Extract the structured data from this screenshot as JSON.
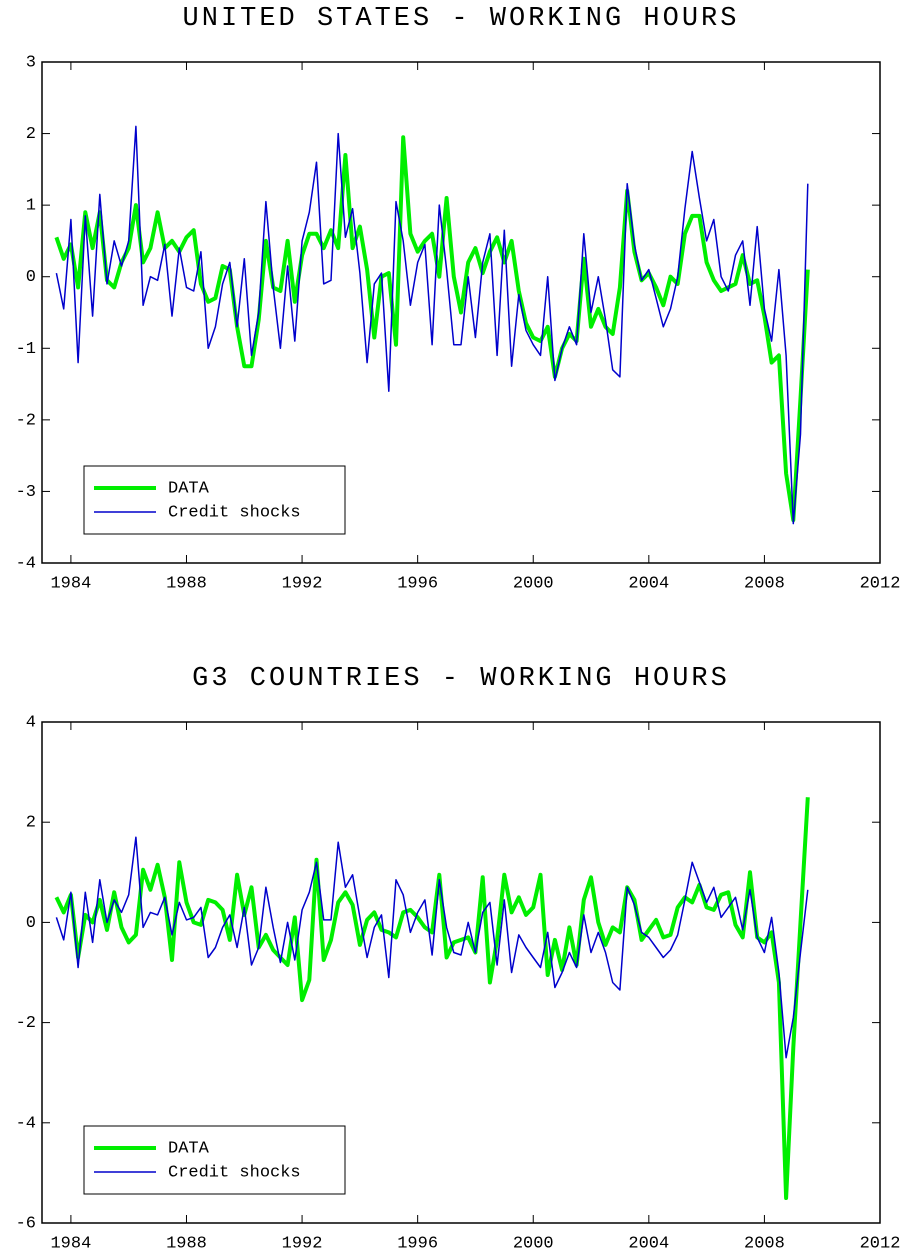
{
  "chart_data": [
    {
      "type": "line",
      "title": "UNITED STATES - WORKING HOURS",
      "x": [
        1983.5,
        1983.75,
        1984,
        1984.25,
        1984.5,
        1984.75,
        1985,
        1985.25,
        1985.5,
        1985.75,
        1986,
        1986.25,
        1986.5,
        1986.75,
        1987,
        1987.25,
        1987.5,
        1987.75,
        1988,
        1988.25,
        1988.5,
        1988.75,
        1989,
        1989.25,
        1989.5,
        1989.75,
        1990,
        1990.25,
        1990.5,
        1990.75,
        1991,
        1991.25,
        1991.5,
        1991.75,
        1992,
        1992.25,
        1992.5,
        1992.75,
        1993,
        1993.25,
        1993.5,
        1993.75,
        1994,
        1994.25,
        1994.5,
        1994.75,
        1995,
        1995.25,
        1995.5,
        1995.75,
        1996,
        1996.25,
        1996.5,
        1996.75,
        1997,
        1997.25,
        1997.5,
        1997.75,
        1998,
        1998.25,
        1998.5,
        1998.75,
        1999,
        1999.25,
        1999.5,
        1999.75,
        2000,
        2000.25,
        2000.5,
        2000.75,
        2001,
        2001.25,
        2001.5,
        2001.75,
        2002,
        2002.25,
        2002.5,
        2002.75,
        2003,
        2003.25,
        2003.5,
        2003.75,
        2004,
        2004.25,
        2004.5,
        2004.75,
        2005,
        2005.25,
        2005.5,
        2005.75,
        2006,
        2006.25,
        2006.5,
        2006.75,
        2007,
        2007.25,
        2007.5,
        2007.75,
        2008,
        2008.25,
        2008.5,
        2008.75,
        2009,
        2009.25,
        2009.5
      ],
      "series": [
        {
          "name": "DATA",
          "color": "#00ee00",
          "values": [
            0.55,
            0.25,
            0.45,
            -0.15,
            0.9,
            0.4,
            0.9,
            -0.05,
            -0.15,
            0.2,
            0.4,
            1.0,
            0.2,
            0.4,
            0.9,
            0.4,
            0.5,
            0.35,
            0.55,
            0.65,
            -0.1,
            -0.35,
            -0.3,
            0.15,
            0.1,
            -0.7,
            -1.25,
            -1.25,
            -0.6,
            0.5,
            -0.15,
            -0.2,
            0.5,
            -0.35,
            0.3,
            0.6,
            0.6,
            0.4,
            0.65,
            0.4,
            1.7,
            0.4,
            0.7,
            0.1,
            -0.85,
            0.0,
            0.05,
            -0.95,
            1.95,
            0.6,
            0.35,
            0.5,
            0.6,
            0.0,
            1.1,
            0.0,
            -0.5,
            0.2,
            0.4,
            0.05,
            0.35,
            0.55,
            0.2,
            0.5,
            -0.2,
            -0.65,
            -0.85,
            -0.9,
            -0.7,
            -1.4,
            -1.0,
            -0.8,
            -0.9,
            0.25,
            -0.7,
            -0.45,
            -0.7,
            -0.8,
            -0.15,
            1.2,
            0.35,
            -0.05,
            0.05,
            -0.15,
            -0.4,
            0.0,
            -0.1,
            0.6,
            0.85,
            0.85,
            0.2,
            -0.05,
            -0.2,
            -0.15,
            -0.1,
            0.3,
            -0.1,
            -0.05,
            -0.55,
            -1.2,
            -1.1,
            -2.75,
            -3.4,
            -1.7,
            0.1
          ]
        },
        {
          "name": "Credit shocks",
          "color": "#0000cc",
          "values": [
            0.05,
            -0.45,
            0.8,
            -1.2,
            0.85,
            -0.55,
            1.15,
            -0.1,
            0.5,
            0.15,
            0.5,
            2.1,
            -0.4,
            0.0,
            -0.05,
            0.45,
            -0.55,
            0.4,
            -0.15,
            -0.2,
            0.35,
            -1.0,
            -0.7,
            -0.1,
            0.2,
            -0.7,
            0.25,
            -1.1,
            -0.5,
            1.05,
            -0.15,
            -1.0,
            0.15,
            -0.9,
            0.5,
            0.9,
            1.6,
            -0.1,
            -0.05,
            2.0,
            0.55,
            0.95,
            0.05,
            -1.2,
            -0.1,
            0.05,
            -1.6,
            1.05,
            0.5,
            -0.4,
            0.2,
            0.45,
            -0.95,
            1.0,
            0.1,
            -0.95,
            -0.95,
            0.0,
            -0.85,
            0.2,
            0.6,
            -1.1,
            0.65,
            -1.25,
            -0.25,
            -0.75,
            -0.95,
            -1.1,
            0.0,
            -1.45,
            -1.0,
            -0.7,
            -0.95,
            0.6,
            -0.5,
            0.0,
            -0.6,
            -1.3,
            -1.4,
            1.3,
            0.45,
            -0.05,
            0.1,
            -0.3,
            -0.7,
            -0.45,
            0.0,
            0.95,
            1.75,
            1.1,
            0.5,
            0.8,
            0.0,
            -0.2,
            0.3,
            0.5,
            -0.4,
            0.7,
            -0.45,
            -0.9,
            0.1,
            -1.1,
            -3.45,
            -2.2,
            1.3
          ]
        }
      ],
      "xlim": [
        1983,
        2012
      ],
      "xticks": [
        1984,
        1988,
        1992,
        1996,
        2000,
        2004,
        2008,
        2012
      ],
      "ylim": [
        -4,
        3
      ],
      "yticks": [
        -4,
        -3,
        -2,
        -1,
        0,
        1,
        2,
        3
      ],
      "legend": "lower left"
    },
    {
      "type": "line",
      "title": "G3 COUNTRIES - WORKING HOURS",
      "x": [
        1983.5,
        1983.75,
        1984,
        1984.25,
        1984.5,
        1984.75,
        1985,
        1985.25,
        1985.5,
        1985.75,
        1986,
        1986.25,
        1986.5,
        1986.75,
        1987,
        1987.25,
        1987.5,
        1987.75,
        1988,
        1988.25,
        1988.5,
        1988.75,
        1989,
        1989.25,
        1989.5,
        1989.75,
        1990,
        1990.25,
        1990.5,
        1990.75,
        1991,
        1991.25,
        1991.5,
        1991.75,
        1992,
        1992.25,
        1992.5,
        1992.75,
        1993,
        1993.25,
        1993.5,
        1993.75,
        1994,
        1994.25,
        1994.5,
        1994.75,
        1995,
        1995.25,
        1995.5,
        1995.75,
        1996,
        1996.25,
        1996.5,
        1996.75,
        1997,
        1997.25,
        1997.5,
        1997.75,
        1998,
        1998.25,
        1998.5,
        1998.75,
        1999,
        1999.25,
        1999.5,
        1999.75,
        2000,
        2000.25,
        2000.5,
        2000.75,
        2001,
        2001.25,
        2001.5,
        2001.75,
        2002,
        2002.25,
        2002.5,
        2002.75,
        2003,
        2003.25,
        2003.5,
        2003.75,
        2004,
        2004.25,
        2004.5,
        2004.75,
        2005,
        2005.25,
        2005.5,
        2005.75,
        2006,
        2006.25,
        2006.5,
        2006.75,
        2007,
        2007.25,
        2007.5,
        2007.75,
        2008,
        2008.25,
        2008.5,
        2008.75,
        2009,
        2009.25,
        2009.5
      ],
      "series": [
        {
          "name": "DATA",
          "color": "#00ee00",
          "values": [
            0.5,
            0.2,
            0.55,
            -0.7,
            0.15,
            0.0,
            0.45,
            -0.15,
            0.6,
            -0.1,
            -0.4,
            -0.25,
            1.05,
            0.65,
            1.15,
            0.5,
            -0.75,
            1.2,
            0.4,
            0.0,
            -0.05,
            0.45,
            0.4,
            0.25,
            -0.35,
            0.95,
            0.15,
            0.7,
            -0.5,
            -0.25,
            -0.55,
            -0.7,
            -0.85,
            0.1,
            -1.55,
            -1.15,
            1.25,
            -0.75,
            -0.35,
            0.4,
            0.6,
            0.35,
            -0.45,
            0.05,
            0.2,
            -0.15,
            -0.2,
            -0.3,
            0.2,
            0.25,
            0.1,
            -0.1,
            -0.2,
            0.95,
            -0.7,
            -0.4,
            -0.35,
            -0.3,
            -0.6,
            0.9,
            -1.2,
            -0.35,
            0.95,
            0.2,
            0.5,
            0.15,
            0.3,
            0.95,
            -1.05,
            -0.35,
            -0.95,
            -0.1,
            -0.85,
            0.45,
            0.9,
            0.0,
            -0.45,
            -0.1,
            -0.2,
            0.7,
            0.45,
            -0.35,
            -0.15,
            0.05,
            -0.3,
            -0.25,
            0.3,
            0.5,
            0.4,
            0.75,
            0.3,
            0.25,
            0.55,
            0.6,
            -0.05,
            -0.3,
            1.0,
            -0.3,
            -0.4,
            -0.2,
            -1.2,
            -5.5,
            -2.5,
            0.0,
            2.5
          ]
        },
        {
          "name": "Credit shocks",
          "color": "#0000cc",
          "values": [
            0.1,
            -0.35,
            0.6,
            -0.9,
            0.6,
            -0.4,
            0.85,
            0.0,
            0.45,
            0.2,
            0.55,
            1.7,
            -0.1,
            0.2,
            0.15,
            0.5,
            -0.25,
            0.4,
            0.05,
            0.1,
            0.3,
            -0.7,
            -0.5,
            -0.1,
            0.15,
            -0.5,
            0.3,
            -0.85,
            -0.5,
            0.7,
            -0.1,
            -0.8,
            0.0,
            -0.75,
            0.25,
            0.6,
            1.2,
            0.05,
            0.05,
            1.6,
            0.7,
            0.95,
            0.1,
            -0.7,
            -0.1,
            0.15,
            -1.1,
            0.85,
            0.55,
            -0.2,
            0.2,
            0.45,
            -0.65,
            0.85,
            -0.1,
            -0.6,
            -0.65,
            0.0,
            -0.6,
            0.2,
            0.4,
            -0.85,
            0.45,
            -1.0,
            -0.25,
            -0.5,
            -0.7,
            -0.9,
            -0.2,
            -1.3,
            -1.0,
            -0.6,
            -0.9,
            0.15,
            -0.6,
            -0.2,
            -0.6,
            -1.2,
            -1.35,
            0.7,
            0.35,
            -0.2,
            -0.3,
            -0.5,
            -0.7,
            -0.55,
            -0.25,
            0.45,
            1.2,
            0.8,
            0.4,
            0.7,
            0.1,
            0.3,
            0.5,
            -0.15,
            0.65,
            -0.3,
            -0.6,
            0.1,
            -1.0,
            -2.7,
            -1.9,
            -0.6,
            0.65
          ]
        }
      ],
      "xlim": [
        1983,
        2012
      ],
      "xticks": [
        1984,
        1988,
        1992,
        1996,
        2000,
        2004,
        2008,
        2012
      ],
      "ylim": [
        -6,
        4
      ],
      "yticks": [
        -6,
        -4,
        -2,
        0,
        2,
        4
      ],
      "legend": "lower left"
    }
  ]
}
